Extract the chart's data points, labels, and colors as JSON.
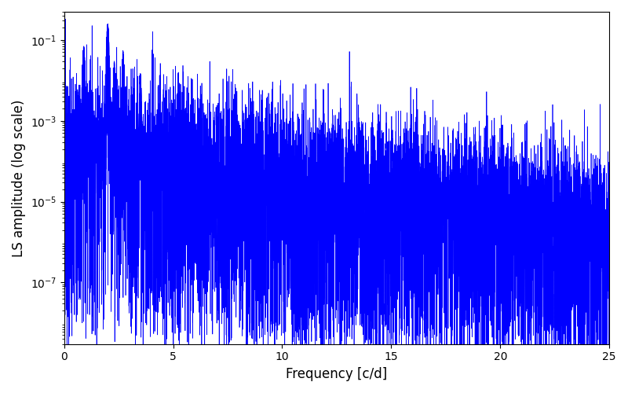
{
  "title": "",
  "xlabel": "Frequency [c/d]",
  "ylabel": "LS amplitude (log scale)",
  "xlim": [
    0,
    25
  ],
  "ylim": [
    3e-09,
    0.5
  ],
  "line_color": "#0000ff",
  "line_width": 0.5,
  "figsize": [
    8.0,
    5.0
  ],
  "dpi": 100,
  "seed": 12345,
  "n_points": 8000,
  "freq_max": 25.0
}
